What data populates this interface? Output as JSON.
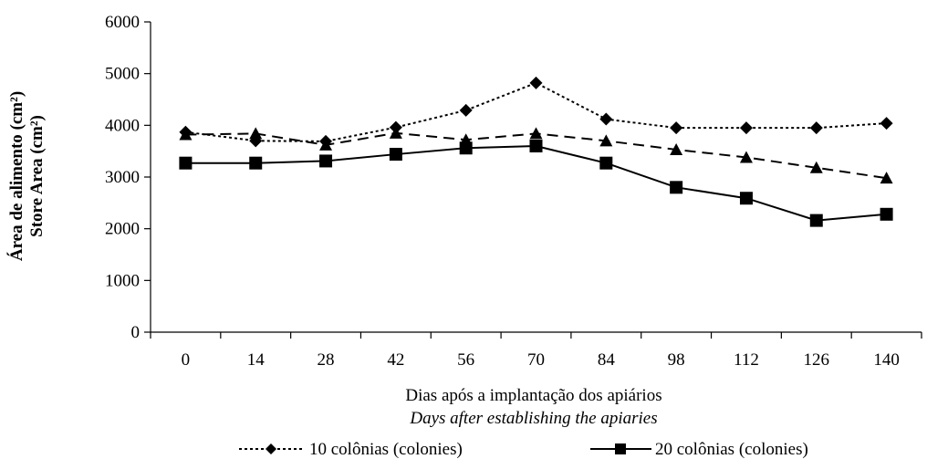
{
  "chart_data": {
    "type": "line",
    "xlabel": "Dias após a implantação dos apiários",
    "xlabel_en": "Days after establishing the apiaries",
    "ylabel": "Área de alimento (cm²)",
    "ylabel_en": "Store Area (cm²)",
    "ylim": [
      0,
      6000
    ],
    "yticks": [
      "0",
      "1000",
      "2000",
      "3000",
      "4000",
      "5000",
      "6000"
    ],
    "categories": [
      "0",
      "14",
      "28",
      "42",
      "56",
      "70",
      "84",
      "98",
      "112",
      "126",
      "140"
    ],
    "grid": false,
    "legend_position": "bottom",
    "series": [
      {
        "name": "10 colônias (colonies)",
        "marker": "diamond",
        "line": "dotted",
        "color": "#000000",
        "values": [
          3870,
          3700,
          3690,
          3960,
          4290,
          4820,
          4120,
          3950,
          3950,
          3950,
          4040
        ]
      },
      {
        "name": "",
        "marker": "triangle",
        "line": "dashed",
        "color": "#000000",
        "values": [
          3820,
          3840,
          3620,
          3850,
          3720,
          3840,
          3700,
          3530,
          3380,
          3180,
          2980
        ]
      },
      {
        "name": "20 colônias (colonies)",
        "marker": "square",
        "line": "solid",
        "color": "#000000",
        "values": [
          3270,
          3270,
          3310,
          3440,
          3560,
          3600,
          3270,
          2800,
          2590,
          2160,
          2280
        ]
      }
    ]
  }
}
